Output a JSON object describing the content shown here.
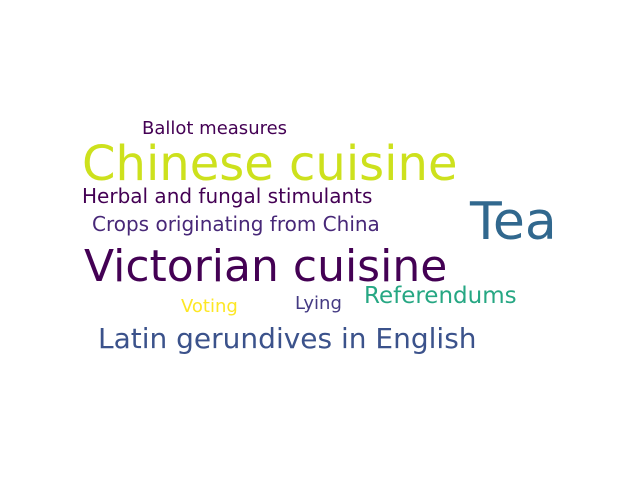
{
  "word_cloud": {
    "background": "#ffffff",
    "words": [
      {
        "text": "Ballot measures",
        "color": "#440154"
      },
      {
        "text": "Chinese cuisine",
        "color": "#cde11d"
      },
      {
        "text": "Herbal and fungal stimulants",
        "color": "#440154"
      },
      {
        "text": "Tea",
        "color": "#31688e"
      },
      {
        "text": "Crops originating from China",
        "color": "#482878"
      },
      {
        "text": "Victorian cuisine",
        "color": "#440154"
      },
      {
        "text": "Referendums",
        "color": "#26a783"
      },
      {
        "text": "Voting",
        "color": "#fde725"
      },
      {
        "text": "Lying",
        "color": "#443a83"
      },
      {
        "text": "Latin gerundives in English",
        "color": "#3b528b"
      }
    ]
  }
}
